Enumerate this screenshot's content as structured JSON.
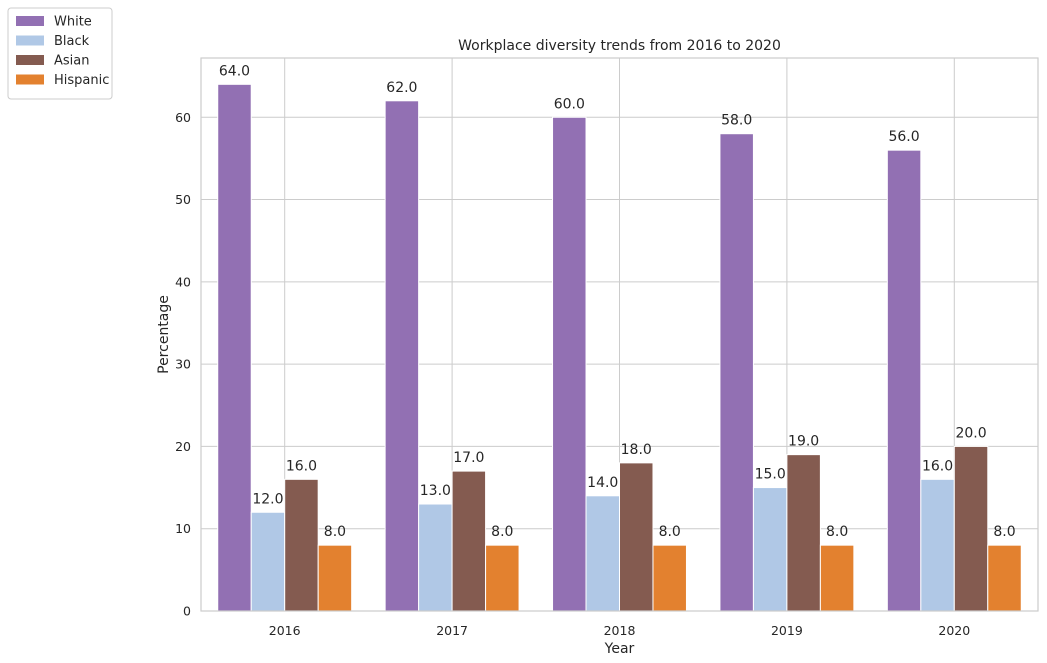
{
  "chart_data": {
    "type": "bar",
    "title": "Workplace diversity trends from 2016 to 2020",
    "xlabel": "Year",
    "ylabel": "Percentage",
    "categories": [
      "2016",
      "2017",
      "2018",
      "2019",
      "2020"
    ],
    "ylim": [
      0,
      67.2
    ],
    "yticks": [
      0,
      10,
      20,
      30,
      40,
      50,
      60
    ],
    "grid": true,
    "legend_position": "top-left outside",
    "series": [
      {
        "name": "White",
        "color": "#9270b3",
        "values": [
          64.0,
          62.0,
          60.0,
          58.0,
          56.0
        ],
        "labels": [
          "64.0",
          "62.0",
          "60.0",
          "58.0",
          "56.0"
        ]
      },
      {
        "name": "Black",
        "color": "#b0c8e6",
        "values": [
          12.0,
          13.0,
          14.0,
          15.0,
          16.0
        ],
        "labels": [
          "12.0",
          "13.0",
          "14.0",
          "15.0",
          "16.0"
        ]
      },
      {
        "name": "Asian",
        "color": "#845b50",
        "values": [
          16.0,
          17.0,
          18.0,
          19.0,
          20.0
        ],
        "labels": [
          "16.0",
          "17.0",
          "18.0",
          "19.0",
          "20.0"
        ]
      },
      {
        "name": "Hispanic",
        "color": "#e3812f",
        "values": [
          8.0,
          8.0,
          8.0,
          8.0,
          8.0
        ],
        "labels": [
          "8.0",
          "8.0",
          "8.0",
          "8.0",
          "8.0"
        ]
      }
    ]
  }
}
